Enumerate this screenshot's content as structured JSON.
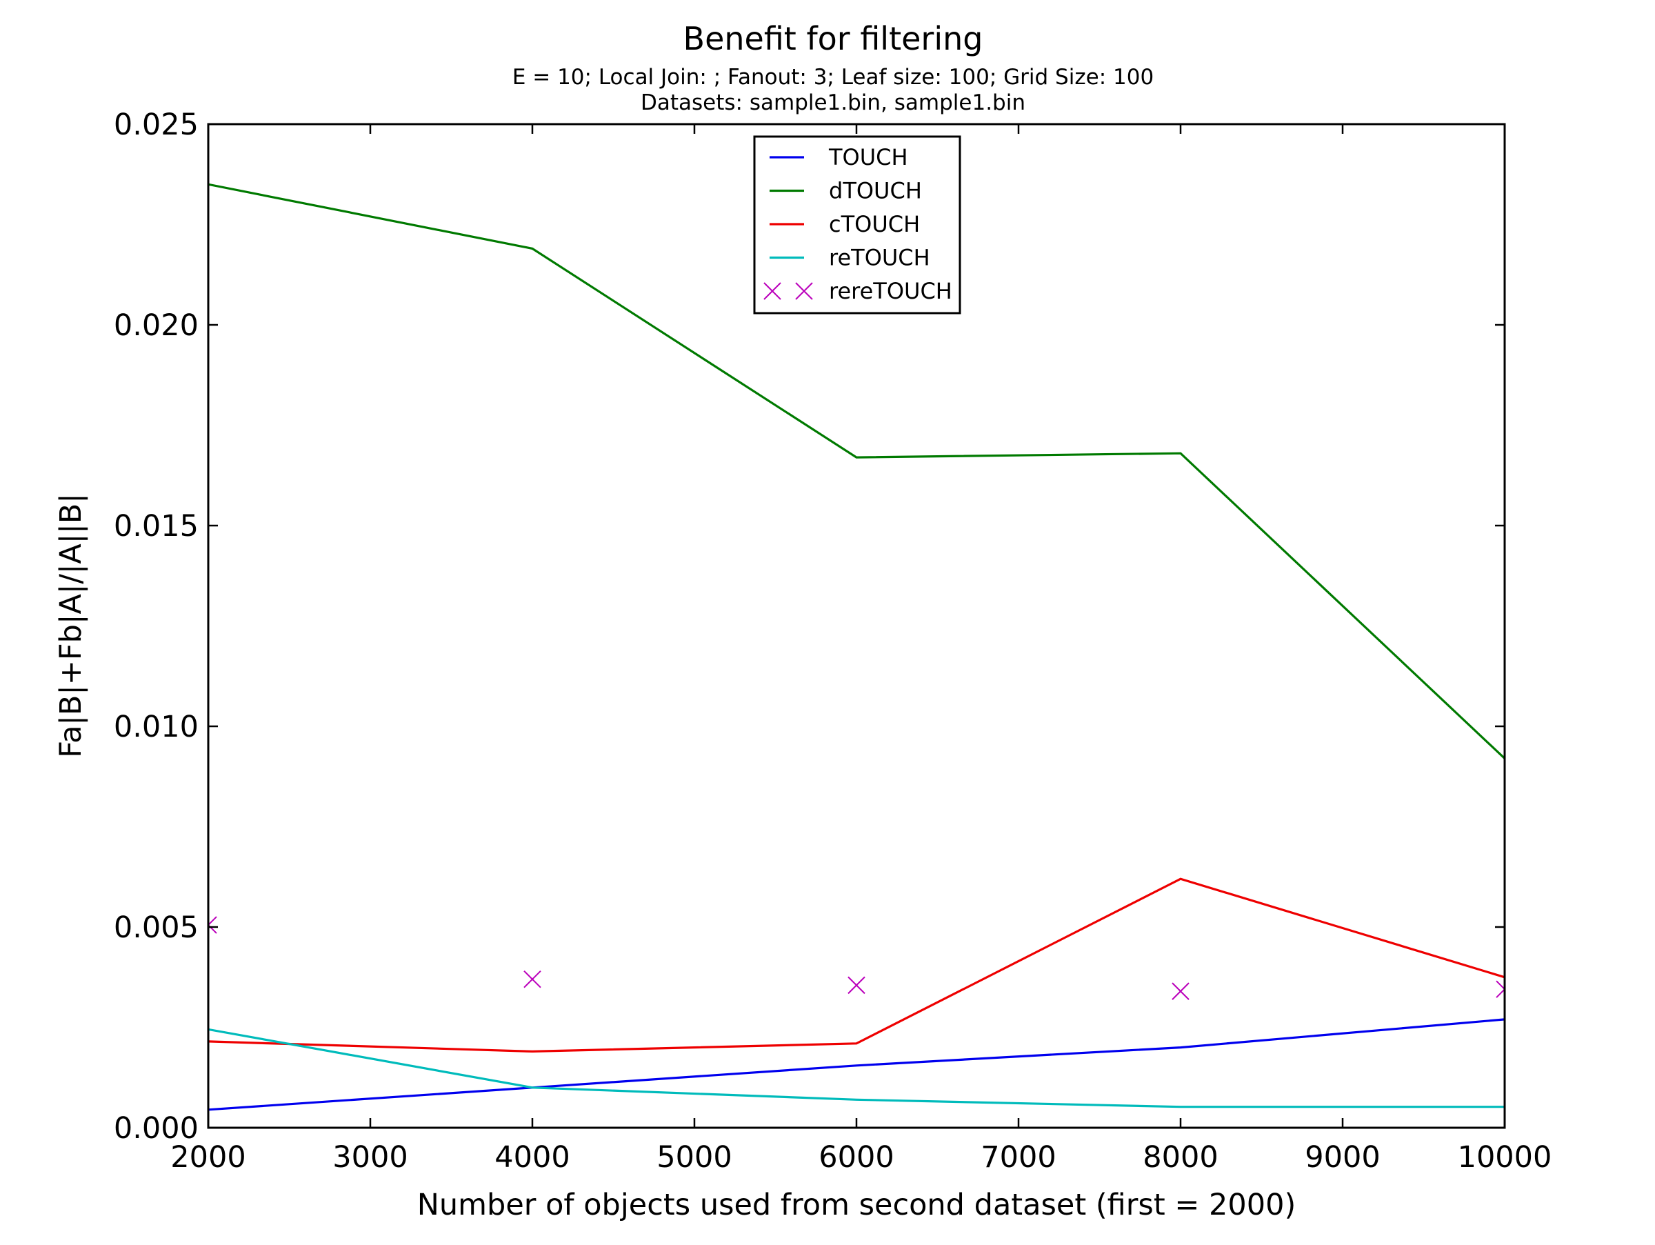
{
  "chart_data": {
    "type": "line",
    "title": "Benefit for filtering",
    "subtitle_lines": [
      "E = 10; Local Join: ; Fanout: 3; Leaf size: 100; Grid Size: 100",
      "Datasets: sample1.bin, sample1.bin"
    ],
    "xlabel": "Number of objects used from second dataset (first = 2000)",
    "ylabel": "Fa|B|+Fb|A|/|A||B|",
    "xlim": [
      2000,
      10000
    ],
    "ylim": [
      0,
      0.025
    ],
    "x_ticks": [
      {
        "value": 2000,
        "label": "2000"
      },
      {
        "value": 3000,
        "label": "3000"
      },
      {
        "value": 4000,
        "label": "4000"
      },
      {
        "value": 5000,
        "label": "5000"
      },
      {
        "value": 6000,
        "label": "6000"
      },
      {
        "value": 7000,
        "label": "7000"
      },
      {
        "value": 8000,
        "label": "8000"
      },
      {
        "value": 9000,
        "label": "9000"
      },
      {
        "value": 10000,
        "label": "10000"
      }
    ],
    "y_ticks": [
      {
        "value": 0,
        "label": "0.000"
      },
      {
        "value": 0.005,
        "label": "0.005"
      },
      {
        "value": 0.01,
        "label": "0.010"
      },
      {
        "value": 0.015,
        "label": "0.015"
      },
      {
        "value": 0.02,
        "label": "0.020"
      },
      {
        "value": 0.025,
        "label": "0.025"
      }
    ],
    "grid": false,
    "legend_position": "top-center",
    "x": [
      2000,
      4000,
      6000,
      8000,
      10000
    ],
    "series": [
      {
        "name": "TOUCH",
        "style": "line",
        "color": "#0000ee",
        "values": [
          0.00045,
          0.001,
          0.00155,
          0.002,
          0.0027
        ]
      },
      {
        "name": "dTOUCH",
        "style": "line",
        "color": "#007a00",
        "values": [
          0.0235,
          0.0219,
          0.0167,
          0.0168,
          0.0092
        ]
      },
      {
        "name": "cTOUCH",
        "style": "line",
        "color": "#ee0000",
        "values": [
          0.00215,
          0.0019,
          0.0021,
          0.0062,
          0.00375
        ]
      },
      {
        "name": "reTOUCH",
        "style": "line",
        "color": "#00bbbb",
        "values": [
          0.00245,
          0.001,
          0.0007,
          0.00052,
          0.00052
        ]
      },
      {
        "name": "rereTOUCH",
        "style": "marker-x",
        "color": "#bb00bb",
        "values": [
          0.00505,
          0.0037,
          0.00355,
          0.0034,
          0.00345
        ]
      }
    ]
  }
}
